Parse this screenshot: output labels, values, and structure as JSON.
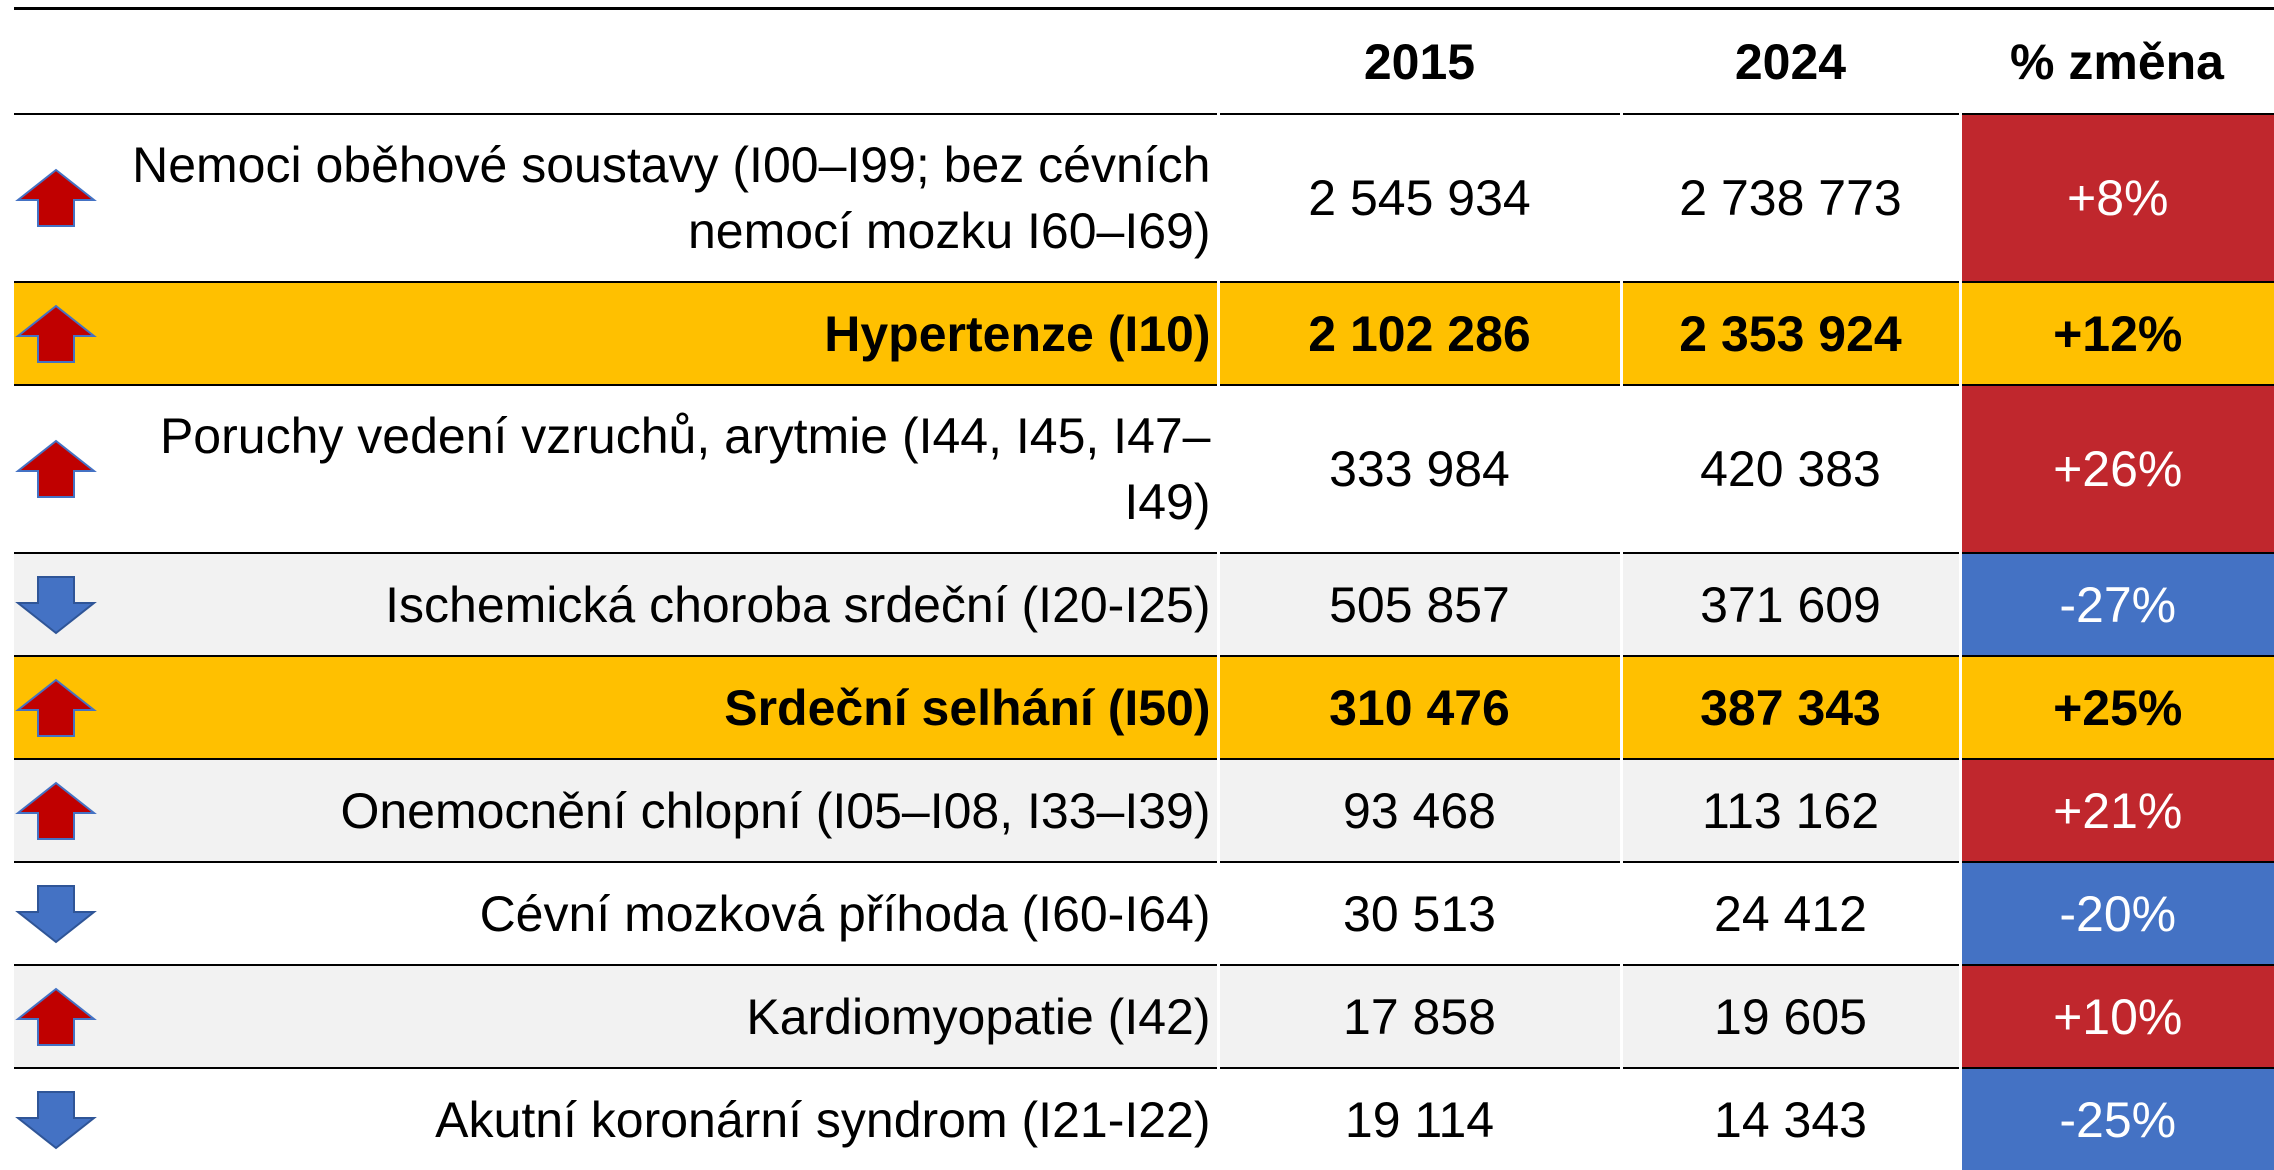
{
  "table": {
    "columns": [
      "2015",
      "2024",
      "% změna"
    ],
    "rows": [
      {
        "label": "Nemoci oběhové soustavy (I00–I99; bez cévních nemocí mozku I60–I69)",
        "cells": [
          "2 545 934",
          "2 738 773",
          "+8%"
        ],
        "fill": "#ffffff",
        "change_fill": "#c0272d",
        "bold": false,
        "tall": true
      },
      {
        "label": "Hypertenze (I10)",
        "cells": [
          "2 102 286",
          "2 353 924",
          "+12%"
        ],
        "fill": "#ffc000",
        "change_fill": "#ffc000",
        "bold": true,
        "tall": false
      },
      {
        "label": "Poruchy vedení vzruchů, arytmie (I44, I45, I47–I49)",
        "cells": [
          "333 984",
          "420 383",
          "+26%"
        ],
        "fill": "#ffffff",
        "change_fill": "#c0272d",
        "bold": false,
        "tall": true
      },
      {
        "label": "Ischemická choroba srdeční (I20-I25)",
        "cells": [
          "505 857",
          "371 609",
          "-27%"
        ],
        "fill": "#f2f2f2",
        "change_fill": "#4472c4",
        "bold": false,
        "tall": false
      },
      {
        "label": "Srdeční selhání (I50)",
        "cells": [
          "310 476",
          "387 343",
          "+25%"
        ],
        "fill": "#ffc000",
        "change_fill": "#ffc000",
        "bold": true,
        "tall": false
      },
      {
        "label": "Onemocnění chlopní (I05–I08, I33–I39)",
        "cells": [
          "93 468",
          "113 162",
          "+21%"
        ],
        "fill": "#f2f2f2",
        "change_fill": "#c0272d",
        "bold": false,
        "tall": false
      },
      {
        "label": "Cévní mozková příhoda (I60-I64)",
        "cells": [
          "30 513",
          "24 412",
          "-20%"
        ],
        "fill": "#ffffff",
        "change_fill": "#4472c4",
        "bold": false,
        "tall": false
      },
      {
        "label": "Kardiomyopatie (I42)",
        "cells": [
          "17 858",
          "19 605",
          "+10%"
        ],
        "fill": "#f2f2f2",
        "change_fill": "#c0272d",
        "bold": false,
        "tall": false
      },
      {
        "label": "Akutní koronární syndrom (I21-I22)",
        "cells": [
          "19 114",
          "14 343",
          "-25%"
        ],
        "fill": "#ffffff",
        "change_fill": "#4472c4",
        "bold": false,
        "tall": false
      }
    ]
  }
}
